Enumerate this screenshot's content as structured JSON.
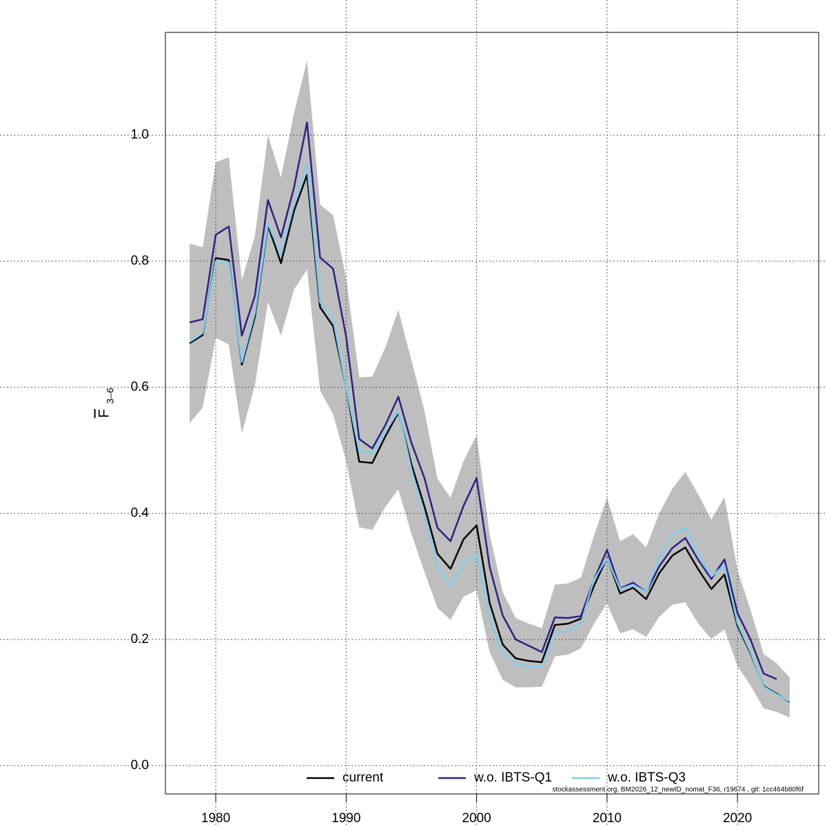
{
  "chart_data": {
    "type": "line",
    "y_label": "F",
    "y_label_subscript": "3–6",
    "footnote": "stockassessment.org, BM2026_12_newID_nomat_F36, r19674 , git: 1cc464b80f6f",
    "x": [
      1978,
      1979,
      1980,
      1981,
      1982,
      1983,
      1984,
      1985,
      1986,
      1987,
      1988,
      1989,
      1990,
      1991,
      1992,
      1993,
      1994,
      1995,
      1996,
      1997,
      1998,
      1999,
      2000,
      2001,
      2002,
      2003,
      2004,
      2005,
      2006,
      2007,
      2008,
      2009,
      2010,
      2011,
      2012,
      2013,
      2014,
      2015,
      2016,
      2017,
      2018,
      2019,
      2020,
      2021,
      2022,
      2023,
      2024
    ],
    "band": {
      "color": "#bebebe",
      "upper": [
        0.828,
        0.822,
        0.957,
        0.965,
        0.77,
        0.84,
        1.0,
        0.933,
        1.035,
        1.118,
        0.89,
        0.873,
        0.773,
        0.616,
        0.617,
        0.663,
        0.723,
        0.643,
        0.563,
        0.455,
        0.425,
        0.483,
        0.524,
        0.367,
        0.275,
        0.234,
        0.225,
        0.218,
        0.287,
        0.289,
        0.298,
        0.365,
        0.425,
        0.356,
        0.367,
        0.346,
        0.4,
        0.439,
        0.466,
        0.43,
        0.39,
        0.426,
        0.31,
        0.247,
        0.177,
        0.162,
        0.14
      ],
      "lower": [
        0.543,
        0.568,
        0.678,
        0.668,
        0.527,
        0.603,
        0.735,
        0.682,
        0.755,
        0.787,
        0.595,
        0.557,
        0.483,
        0.378,
        0.374,
        0.41,
        0.438,
        0.368,
        0.307,
        0.25,
        0.231,
        0.268,
        0.278,
        0.18,
        0.136,
        0.124,
        0.124,
        0.125,
        0.173,
        0.176,
        0.186,
        0.225,
        0.257,
        0.21,
        0.216,
        0.204,
        0.236,
        0.255,
        0.259,
        0.225,
        0.201,
        0.216,
        0.158,
        0.127,
        0.091,
        0.085,
        0.076
      ]
    },
    "series": [
      {
        "name": "current",
        "color": "#000000",
        "values": [
          0.67,
          0.683,
          0.805,
          0.802,
          0.636,
          0.712,
          0.857,
          0.797,
          0.88,
          0.937,
          0.727,
          0.697,
          0.6,
          0.482,
          0.48,
          0.522,
          0.56,
          0.478,
          0.411,
          0.336,
          0.312,
          0.359,
          0.381,
          0.258,
          0.192,
          0.17,
          0.166,
          0.164,
          0.223,
          0.225,
          0.233,
          0.285,
          0.33,
          0.273,
          0.282,
          0.264,
          0.305,
          0.333,
          0.346,
          0.311,
          0.28,
          0.303,
          0.222,
          0.178,
          0.126,
          0.114,
          0.101
        ]
      },
      {
        "name": "w.o. IBTS-Q1",
        "color": "#2e1f85",
        "values": [
          0.703,
          0.708,
          0.842,
          0.855,
          0.682,
          0.745,
          0.897,
          0.838,
          0.917,
          1.02,
          0.806,
          0.788,
          0.68,
          0.518,
          0.503,
          0.54,
          0.585,
          0.512,
          0.456,
          0.377,
          0.356,
          0.412,
          0.456,
          0.315,
          0.238,
          0.2,
          0.19,
          0.18,
          0.235,
          0.234,
          0.237,
          0.295,
          0.342,
          0.281,
          0.29,
          0.275,
          0.316,
          0.345,
          0.361,
          0.326,
          0.296,
          0.327,
          0.242,
          0.2,
          0.146,
          0.137,
          null
        ]
      },
      {
        "name": "w.o. IBTS-Q3",
        "color": "#7fcdf0",
        "values": [
          0.672,
          0.686,
          0.8,
          0.798,
          0.64,
          0.718,
          0.86,
          0.81,
          0.89,
          0.955,
          0.735,
          0.708,
          0.6,
          0.498,
          0.496,
          0.53,
          0.562,
          0.47,
          0.395,
          0.316,
          0.284,
          0.322,
          0.336,
          0.232,
          0.178,
          0.16,
          0.157,
          0.157,
          0.212,
          0.213,
          0.226,
          0.295,
          0.329,
          0.28,
          0.287,
          0.275,
          0.33,
          0.368,
          0.377,
          0.335,
          0.3,
          0.318,
          0.226,
          0.18,
          0.125,
          0.113,
          0.102
        ]
      }
    ],
    "xlim": [
      1976.14,
      2026.23
    ],
    "xticks": [
      1980,
      1990,
      2000,
      2010,
      2020
    ],
    "ylim": [
      -0.045,
      1.163
    ],
    "yticks": [
      {
        "value": 0,
        "label": "0.0"
      },
      0.2,
      0.4,
      0.6,
      0.8,
      {
        "value": 1,
        "label": "1.0"
      }
    ],
    "grid": true,
    "legend": "bottom"
  }
}
